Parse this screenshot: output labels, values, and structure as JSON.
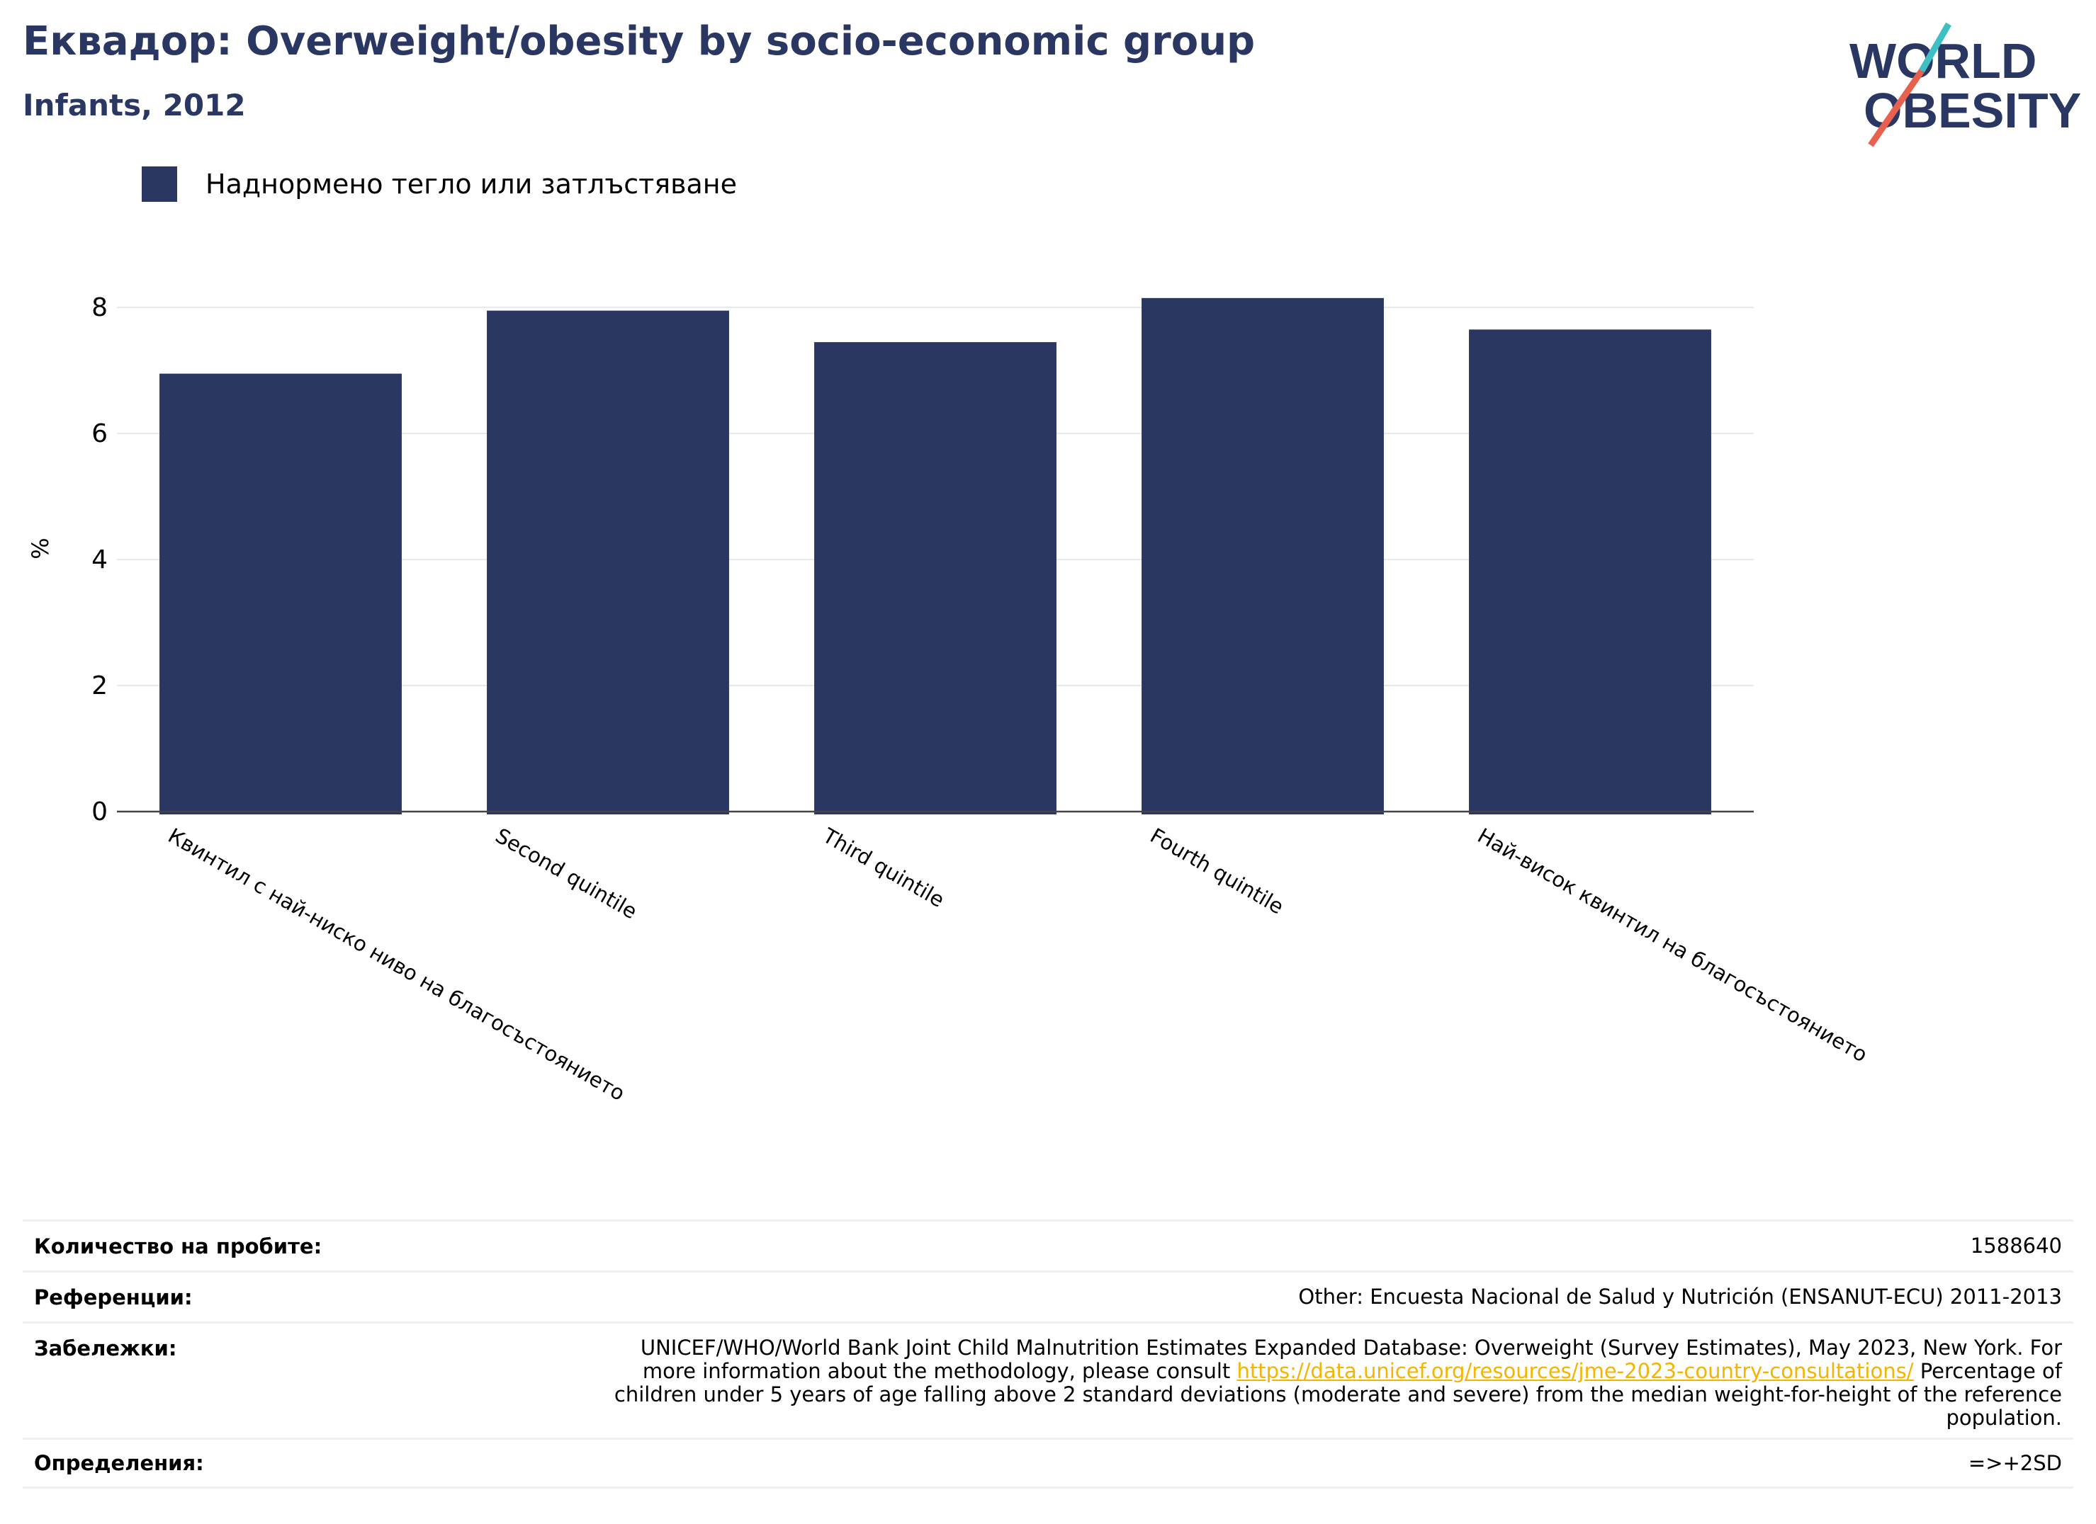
{
  "header": {
    "title": "Еквадор: Overweight/obesity by socio-economic group",
    "subtitle": "Infants, 2012"
  },
  "logo": {
    "line1": "WORLD",
    "line2": "OBESITY"
  },
  "colors": {
    "bar": "#2a3763",
    "accent_teal": "#3dbfc4",
    "accent_red": "#e8604e",
    "link": "#f4b400"
  },
  "chart_data": {
    "type": "bar",
    "categories": [
      "Квинтил с най-ниско ниво на благосъстоянието",
      "Second quintile",
      "Third quintile",
      "Fourth quintile",
      "Най-висок квинтил на благосъстоянието"
    ],
    "series": [
      {
        "name": "Наднормено тегло или затлъстяване",
        "values": [
          6.95,
          7.95,
          7.45,
          8.15,
          7.65
        ]
      }
    ],
    "ylabel": "%",
    "ylim": [
      0,
      8.8
    ],
    "yticks": [
      "0",
      "2",
      "4",
      "6",
      "8"
    ],
    "grid": true,
    "legend": "top-left"
  },
  "notes": {
    "samples_label": "Количество на пробите:",
    "samples_value": "1588640",
    "references_label": "Референции:",
    "references_value": "Other: Encuesta Nacional de Salud y Nutrición (ENSANUT-ECU) 2011-2013",
    "remarks_label": "Забележки:",
    "remarks_line1": "UNICEF/WHO/World Bank Joint Child Malnutrition Estimates Expanded Database: Overweight (Survey Estimates), May 2023, New York. For",
    "remarks_line2_pre": "more information about the methodology, please consult",
    "remarks_link": "https://data.unicef.org/resources/jme-2023-country-consultations/",
    "remarks_line2_post": "Percentage of",
    "remarks_line3": "children under 5 years of age falling above 2 standard deviations (moderate and severe) from the median weight-for-height of the reference",
    "remarks_line4": "population.",
    "definitions_label": "Определения:",
    "definitions_value": "=>+2SD"
  }
}
